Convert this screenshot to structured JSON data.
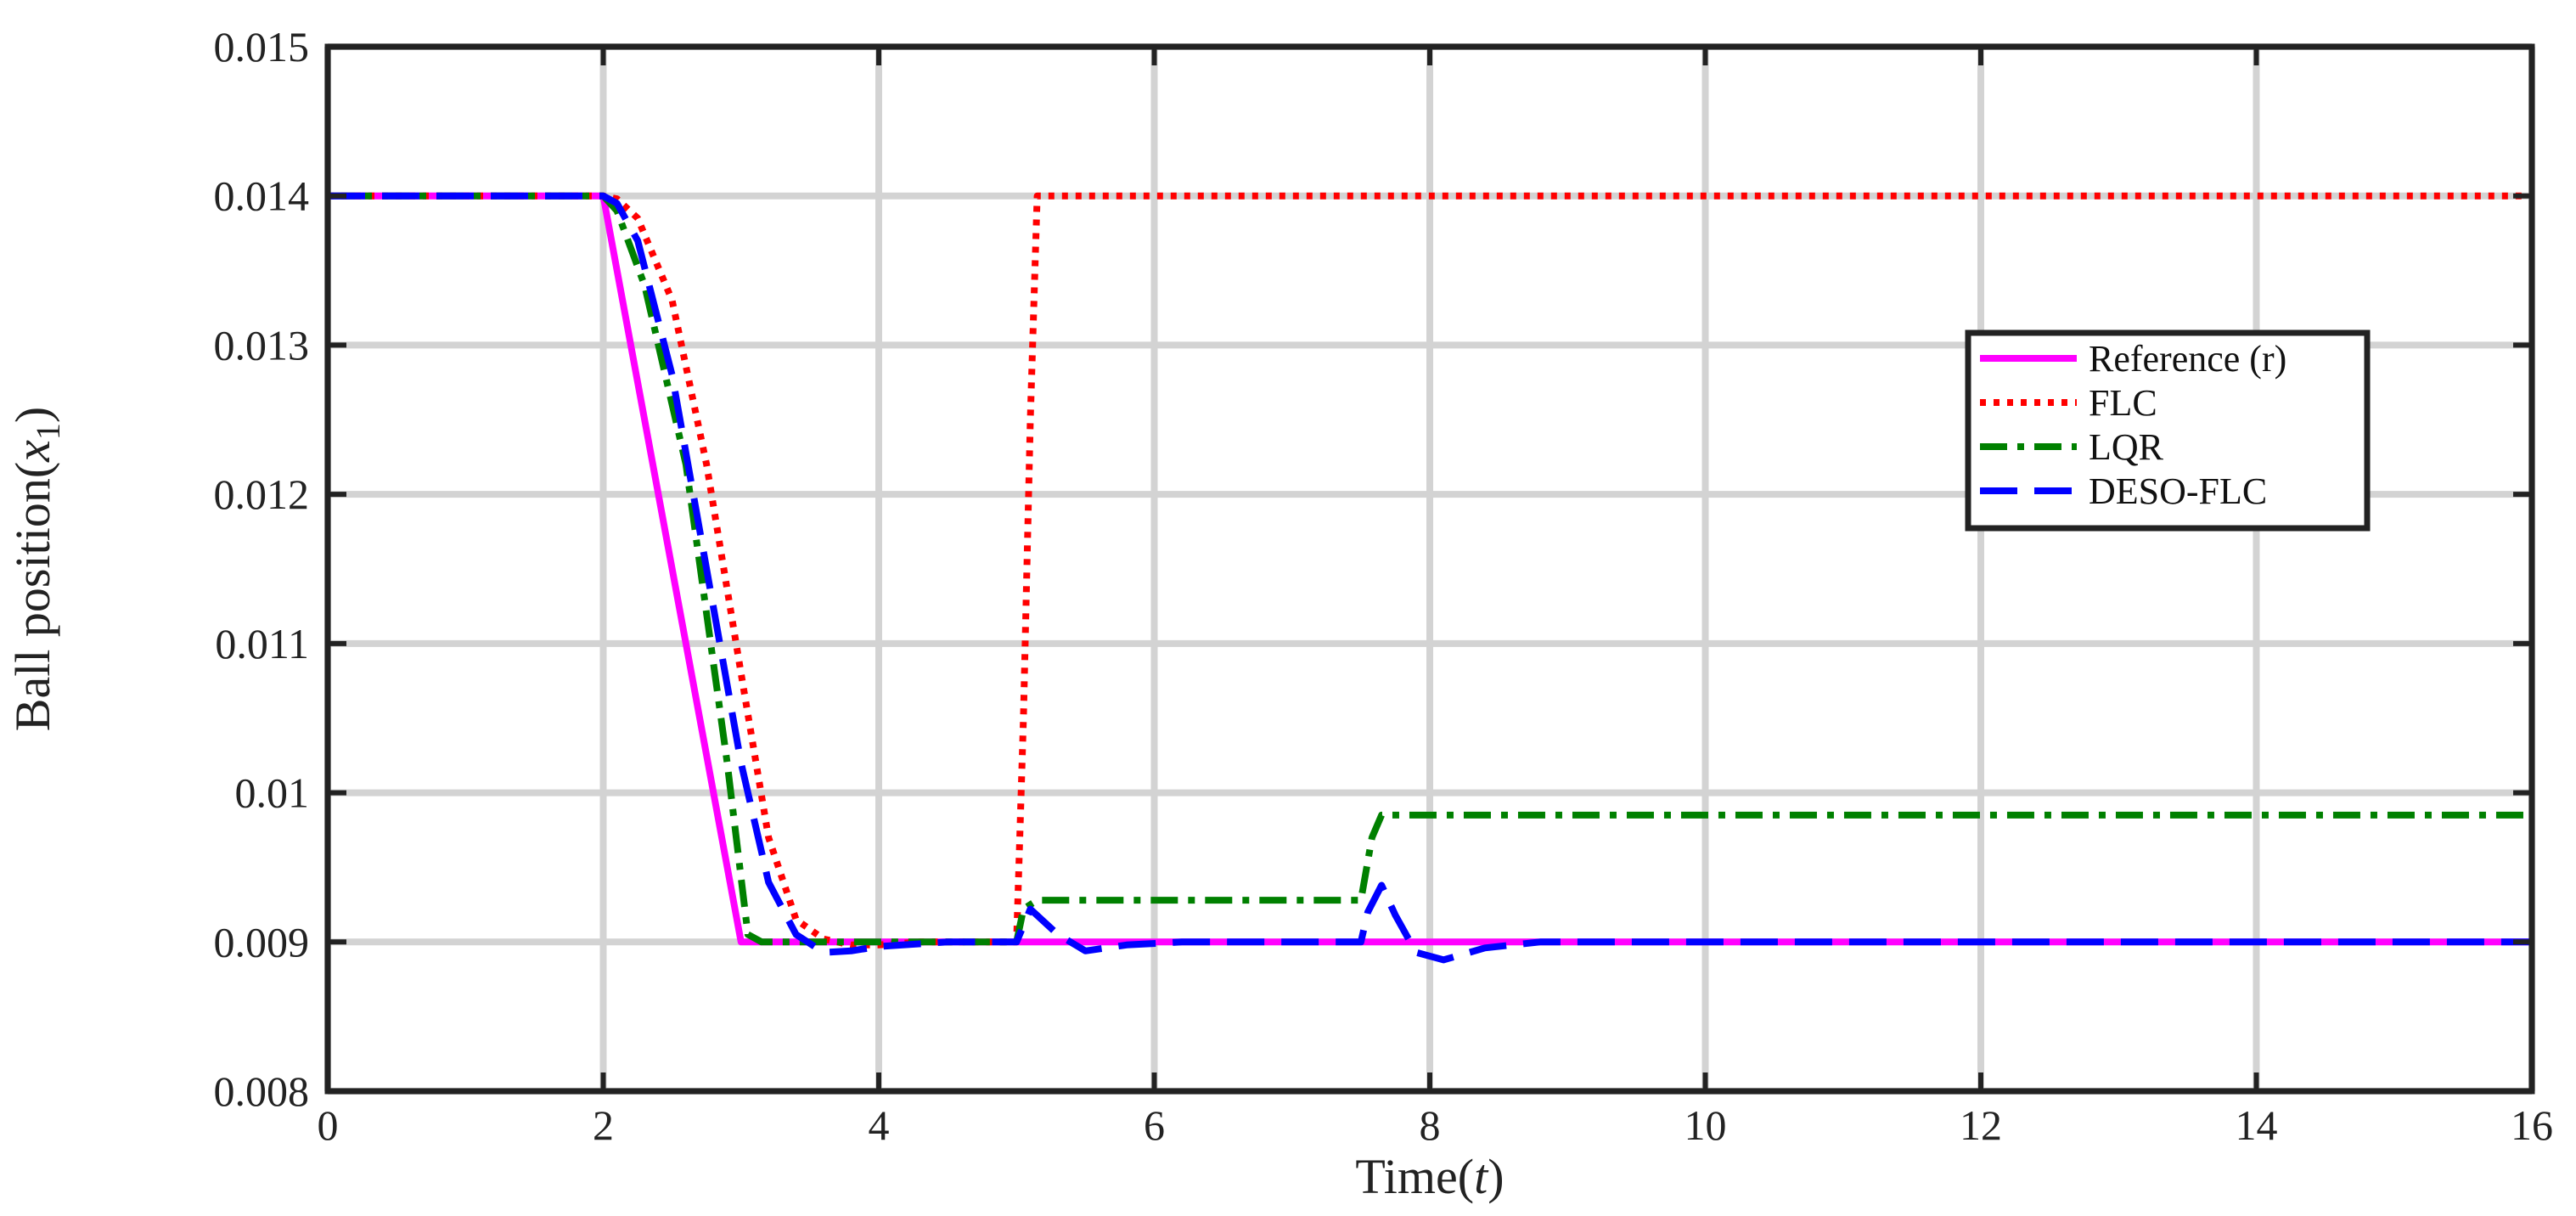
{
  "chart_data": {
    "type": "line",
    "title": "",
    "xlabel": "Time(t)",
    "ylabel": "Ball position(x1)",
    "xlim": [
      0,
      16
    ],
    "ylim": [
      0.008,
      0.015
    ],
    "xticks": [
      "0",
      "2",
      "4",
      "6",
      "8",
      "10",
      "12",
      "14",
      "16"
    ],
    "yticks": [
      "0.008",
      "0.009",
      "0.01",
      "0.011",
      "0.012",
      "0.013",
      "0.014",
      "0.015"
    ],
    "grid": true,
    "legend_position": "upper-right, inside",
    "series": [
      {
        "name": "Reference (r)",
        "color": "#ff00ff",
        "dash": "solid",
        "points": [
          [
            0,
            0.014
          ],
          [
            2,
            0.014
          ],
          [
            3,
            0.009
          ],
          [
            16,
            0.009
          ]
        ]
      },
      {
        "name": "FLC",
        "color": "#ff0000",
        "dash": "dotted",
        "points": [
          [
            0,
            0.014
          ],
          [
            2,
            0.014
          ],
          [
            2.1,
            0.01398
          ],
          [
            2.25,
            0.01385
          ],
          [
            2.5,
            0.0133
          ],
          [
            2.75,
            0.0122
          ],
          [
            3,
            0.0108
          ],
          [
            3.2,
            0.0097
          ],
          [
            3.4,
            0.00915
          ],
          [
            3.6,
            0.00902
          ],
          [
            3.8,
            0.00898
          ],
          [
            4,
            0.00898
          ],
          [
            4.3,
            0.009
          ],
          [
            5.0,
            0.009
          ],
          [
            5.05,
            0.0105
          ],
          [
            5.1,
            0.0125
          ],
          [
            5.15,
            0.014
          ],
          [
            16,
            0.014
          ]
        ]
      },
      {
        "name": "LQR",
        "color": "#008000",
        "dash": "dashdot",
        "points": [
          [
            0,
            0.014
          ],
          [
            2,
            0.014
          ],
          [
            2.1,
            0.0139
          ],
          [
            2.3,
            0.0134
          ],
          [
            2.6,
            0.0122
          ],
          [
            2.9,
            0.0102
          ],
          [
            3.05,
            0.00905
          ],
          [
            3.15,
            0.009
          ],
          [
            5.0,
            0.009
          ],
          [
            5.05,
            0.00922
          ],
          [
            5.15,
            0.00928
          ],
          [
            7.5,
            0.00928
          ],
          [
            7.58,
            0.0097
          ],
          [
            7.65,
            0.00985
          ],
          [
            16,
            0.00985
          ]
        ]
      },
      {
        "name": "DESO-FLC",
        "color": "#0000ff",
        "dash": "longdash",
        "points": [
          [
            0,
            0.014
          ],
          [
            2,
            0.014
          ],
          [
            2.1,
            0.01395
          ],
          [
            2.25,
            0.0137
          ],
          [
            2.5,
            0.0128
          ],
          [
            2.75,
            0.0115
          ],
          [
            3,
            0.0102
          ],
          [
            3.2,
            0.0094
          ],
          [
            3.4,
            0.00905
          ],
          [
            3.6,
            0.00893
          ],
          [
            3.8,
            0.00894
          ],
          [
            4.0,
            0.00897
          ],
          [
            4.5,
            0.009
          ],
          [
            5.0,
            0.009
          ],
          [
            5.1,
            0.00922
          ],
          [
            5.3,
            0.00905
          ],
          [
            5.5,
            0.00894
          ],
          [
            5.8,
            0.00898
          ],
          [
            6.2,
            0.009
          ],
          [
            7.5,
            0.009
          ],
          [
            7.55,
            0.0092
          ],
          [
            7.65,
            0.00938
          ],
          [
            7.75,
            0.00918
          ],
          [
            7.9,
            0.00893
          ],
          [
            8.1,
            0.00888
          ],
          [
            8.4,
            0.00896
          ],
          [
            8.8,
            0.009
          ],
          [
            16,
            0.009
          ]
        ]
      }
    ]
  }
}
